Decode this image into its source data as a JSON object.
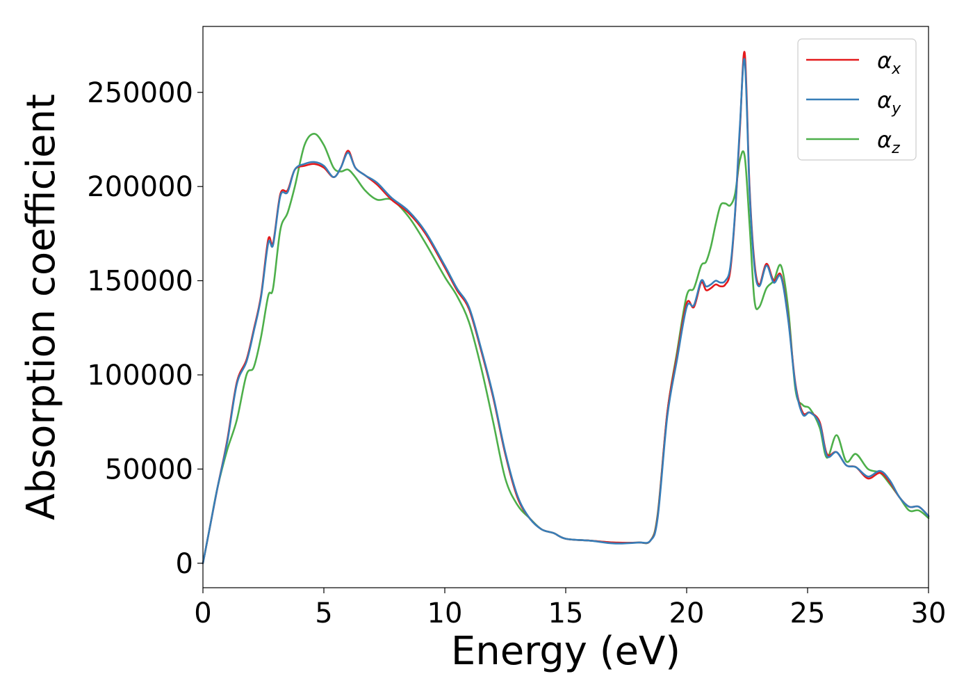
{
  "chart_data": {
    "type": "line",
    "xlabel": "Energy (eV)",
    "ylabel": "Absorption coefficient",
    "xlim": [
      0,
      30
    ],
    "ylim": [
      -13000,
      285000
    ],
    "xticks": [
      0,
      5,
      10,
      15,
      20,
      25,
      30
    ],
    "xtick_labels": [
      "0",
      "5",
      "10",
      "15",
      "20",
      "25",
      "30"
    ],
    "yticks": [
      0,
      50000,
      100000,
      150000,
      200000,
      250000
    ],
    "ytick_labels": [
      "0",
      "50000",
      "100000",
      "150000",
      "200000",
      "250000"
    ],
    "grid": false,
    "legend_position": "top-right",
    "series": [
      {
        "name": "αx",
        "symbol": "α",
        "subscript": "x",
        "color": "#e41a1c",
        "x": [
          0,
          0.3,
          0.6,
          1,
          1.4,
          1.8,
          2.1,
          2.4,
          2.7,
          2.9,
          3.2,
          3.5,
          3.8,
          4.2,
          4.6,
          5,
          5.4,
          5.7,
          6,
          6.3,
          6.7,
          7.2,
          7.8,
          8.5,
          9.2,
          10,
          10.5,
          11,
          11.5,
          12,
          12.5,
          13,
          13.5,
          14,
          14.5,
          15,
          16,
          17,
          18,
          18.5,
          18.8,
          19.2,
          19.6,
          20,
          20.3,
          20.6,
          20.8,
          21,
          21.2,
          21.4,
          21.6,
          21.8,
          22,
          22.2,
          22.4,
          22.6,
          22.8,
          23,
          23.3,
          23.6,
          23.9,
          24.2,
          24.5,
          24.8,
          25.1,
          25.5,
          25.8,
          26.2,
          26.6,
          27,
          27.5,
          28,
          28.4,
          28.8,
          29.2,
          29.6,
          30
        ],
        "values": [
          0,
          20000,
          40000,
          65000,
          96000,
          108000,
          124000,
          142000,
          172000,
          170000,
          196000,
          198000,
          209000,
          211000,
          212000,
          210000,
          205000,
          210000,
          219000,
          210000,
          206000,
          201000,
          193000,
          186000,
          175000,
          157000,
          145000,
          135000,
          113000,
          88000,
          58000,
          35000,
          24000,
          18000,
          16000,
          13000,
          12000,
          11000,
          11000,
          12000,
          25000,
          80000,
          110000,
          138000,
          136000,
          149000,
          145000,
          146000,
          148000,
          147000,
          148000,
          155000,
          185000,
          230000,
          271000,
          200000,
          160000,
          148000,
          159000,
          150000,
          153000,
          130000,
          95000,
          80000,
          80000,
          75000,
          58000,
          59000,
          52000,
          51000,
          45000,
          48000,
          43000,
          35000,
          30000,
          30000,
          25000
        ]
      },
      {
        "name": "αy",
        "symbol": "α",
        "subscript": "y",
        "color": "#377eb8",
        "x": [
          0,
          0.3,
          0.6,
          1,
          1.4,
          1.8,
          2.1,
          2.4,
          2.7,
          2.9,
          3.2,
          3.5,
          3.8,
          4.2,
          4.6,
          5,
          5.4,
          5.7,
          6,
          6.3,
          6.7,
          7.2,
          7.8,
          8.5,
          9.2,
          10,
          10.5,
          11,
          11.5,
          12,
          12.5,
          13,
          13.5,
          14,
          14.5,
          15,
          16,
          17,
          18,
          18.5,
          18.8,
          19.2,
          19.6,
          20,
          20.3,
          20.6,
          20.8,
          21,
          21.2,
          21.4,
          21.6,
          21.8,
          22,
          22.2,
          22.4,
          22.6,
          22.8,
          23,
          23.3,
          23.6,
          23.9,
          24.2,
          24.5,
          24.8,
          25.1,
          25.5,
          25.8,
          26.2,
          26.6,
          27,
          27.5,
          28,
          28.4,
          28.8,
          29.2,
          29.6,
          30
        ],
        "values": [
          0,
          20000,
          40000,
          64000,
          95000,
          107000,
          123000,
          141000,
          170000,
          169000,
          195000,
          197000,
          209000,
          212000,
          213000,
          211000,
          205000,
          210000,
          218000,
          210000,
          206000,
          202000,
          194000,
          187000,
          176000,
          158000,
          146000,
          136000,
          114000,
          89000,
          59000,
          36000,
          24000,
          18000,
          16000,
          13000,
          12000,
          10500,
          11000,
          12000,
          24000,
          78000,
          108000,
          136000,
          137000,
          150000,
          147000,
          148000,
          150000,
          149000,
          150000,
          157000,
          186000,
          232000,
          267000,
          198000,
          158000,
          147000,
          158000,
          149000,
          152000,
          129000,
          94000,
          79000,
          80000,
          74000,
          57000,
          59000,
          52000,
          51000,
          46000,
          49000,
          44000,
          35000,
          30000,
          30000,
          25000
        ]
      },
      {
        "name": "αz",
        "symbol": "α",
        "subscript": "z",
        "color": "#4daf4a",
        "x": [
          0,
          0.3,
          0.6,
          1,
          1.4,
          1.8,
          2.1,
          2.4,
          2.7,
          2.9,
          3.2,
          3.5,
          3.8,
          4.2,
          4.6,
          5,
          5.4,
          5.7,
          6,
          6.3,
          6.7,
          7.2,
          7.8,
          8.5,
          9.2,
          10,
          10.5,
          11,
          11.5,
          12,
          12.5,
          13,
          13.5,
          14,
          14.5,
          15,
          16,
          17,
          18,
          18.5,
          18.8,
          19.2,
          19.6,
          20,
          20.3,
          20.6,
          20.8,
          21,
          21.2,
          21.4,
          21.6,
          21.8,
          22,
          22.2,
          22.4,
          22.6,
          22.8,
          23,
          23.3,
          23.6,
          23.9,
          24.2,
          24.5,
          24.8,
          25.1,
          25.5,
          25.8,
          26.2,
          26.6,
          27,
          27.5,
          28,
          28.4,
          28.8,
          29.2,
          29.6,
          30
        ],
        "values": [
          0,
          20000,
          40000,
          60000,
          76000,
          100000,
          104000,
          120000,
          142000,
          146000,
          177000,
          186000,
          200000,
          222000,
          228000,
          222000,
          210000,
          208000,
          209000,
          205000,
          198000,
          193000,
          193000,
          184000,
          170000,
          152000,
          142000,
          128000,
          104000,
          75000,
          45000,
          31000,
          24000,
          18000,
          16000,
          13000,
          12000,
          11000,
          11000,
          12000,
          26000,
          80000,
          112000,
          142000,
          146000,
          158000,
          160000,
          168000,
          180000,
          190000,
          191000,
          190000,
          196000,
          214000,
          216000,
          180000,
          140000,
          136000,
          146000,
          150000,
          158000,
          135000,
          92000,
          84000,
          82000,
          72000,
          56000,
          68000,
          54000,
          58000,
          50000,
          48000,
          42000,
          35000,
          28000,
          28000,
          24000
        ]
      }
    ]
  }
}
